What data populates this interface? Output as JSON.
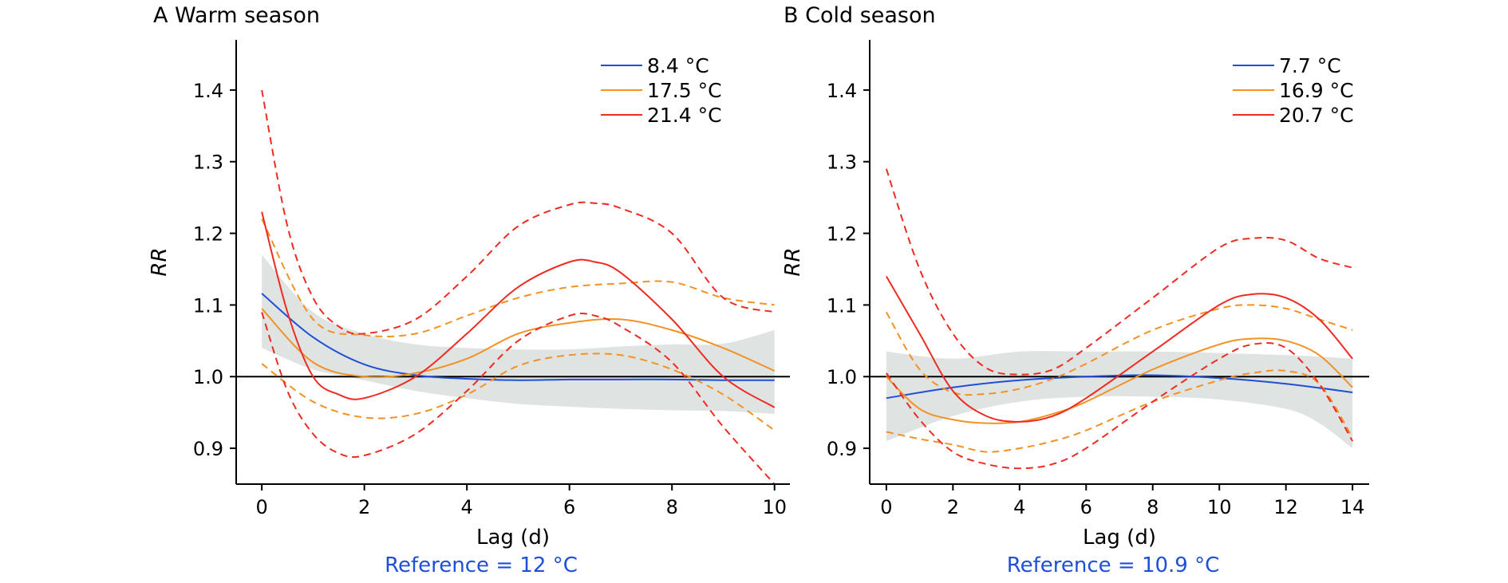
{
  "chart_data": [
    {
      "type": "line",
      "title": "A Warm season",
      "xlabel": "Lag (d)",
      "ylabel": "RR",
      "xlim": [
        0,
        10
      ],
      "ylim": [
        0.85,
        1.47
      ],
      "xticks": [
        0,
        2,
        4,
        6,
        8,
        10
      ],
      "xtick_labels": [
        "0",
        "2",
        "4",
        "6",
        "8",
        "10"
      ],
      "yticks": [
        0.9,
        1.0,
        1.1,
        1.2,
        1.3,
        1.4
      ],
      "ytick_labels": [
        "0.9",
        "1.0",
        "1.1",
        "1.2",
        "1.3",
        "1.4"
      ],
      "reference_line": 1.0,
      "reference_text": "Reference = 12 °C",
      "legend_position": "top-right",
      "band": {
        "x": [
          0,
          1,
          2,
          3,
          4,
          5,
          6,
          7,
          8,
          9,
          10
        ],
        "lower": [
          1.04,
          1.01,
          0.995,
          0.98,
          0.97,
          0.962,
          0.958,
          0.955,
          0.953,
          0.952,
          0.948
        ],
        "upper": [
          1.17,
          1.09,
          1.06,
          1.045,
          1.04,
          1.038,
          1.038,
          1.042,
          1.045,
          1.046,
          1.065
        ]
      },
      "series": [
        {
          "name": "8.4 °C",
          "color": "#1f4fd8",
          "x": [
            0,
            1,
            2,
            3,
            4,
            5,
            6,
            7,
            8,
            9,
            10
          ],
          "y": [
            1.116,
            1.055,
            1.017,
            1.002,
            0.997,
            0.995,
            0.996,
            0.996,
            0.996,
            0.995,
            0.995
          ],
          "lower": null,
          "upper": null
        },
        {
          "name": "17.5 °C",
          "color": "#f39222",
          "x": [
            0,
            1,
            2,
            3,
            4,
            5,
            6,
            7,
            8,
            9,
            10
          ],
          "y": [
            1.095,
            1.02,
            1.0,
            1.005,
            1.025,
            1.06,
            1.075,
            1.08,
            1.065,
            1.04,
            1.008
          ],
          "lower": [
            1.018,
            0.965,
            0.943,
            0.948,
            0.975,
            1.015,
            1.03,
            1.03,
            1.01,
            0.975,
            0.925
          ],
          "upper": [
            1.22,
            1.08,
            1.058,
            1.06,
            1.085,
            1.11,
            1.125,
            1.13,
            1.132,
            1.11,
            1.1
          ]
        },
        {
          "name": "21.4 °C",
          "color": "#ee2b22",
          "x": [
            0,
            0.5,
            1,
            1.5,
            2,
            3,
            4,
            5,
            6,
            6.5,
            7,
            8,
            9,
            10
          ],
          "y": [
            1.23,
            1.09,
            1.0,
            0.975,
            0.97,
            1.0,
            1.06,
            1.125,
            1.16,
            1.16,
            1.145,
            1.08,
            1.0,
            0.957
          ],
          "lower": [
            1.09,
            0.98,
            0.92,
            0.893,
            0.89,
            0.92,
            0.98,
            1.05,
            1.085,
            1.085,
            1.07,
            1.02,
            0.93,
            0.85
          ],
          "upper": [
            1.4,
            1.21,
            1.11,
            1.07,
            1.06,
            1.08,
            1.14,
            1.21,
            1.24,
            1.242,
            1.235,
            1.2,
            1.11,
            1.09
          ]
        }
      ]
    },
    {
      "type": "line",
      "title": "B Cold season",
      "xlabel": "Lag (d)",
      "ylabel": "RR",
      "xlim": [
        0,
        14
      ],
      "ylim": [
        0.85,
        1.47
      ],
      "xticks": [
        0,
        2,
        4,
        6,
        8,
        10,
        12,
        14
      ],
      "xtick_labels": [
        "0",
        "2",
        "4",
        "6",
        "8",
        "10",
        "12",
        "14"
      ],
      "yticks": [
        0.9,
        1.0,
        1.1,
        1.2,
        1.3,
        1.4
      ],
      "ytick_labels": [
        "0.9",
        "1.0",
        "1.1",
        "1.2",
        "1.3",
        "1.4"
      ],
      "reference_line": 1.0,
      "reference_text": "Reference = 10.9 °C",
      "legend_position": "top-right",
      "band": {
        "x": [
          0,
          2,
          4,
          6,
          8,
          10,
          12,
          13,
          14
        ],
        "lower": [
          0.91,
          0.945,
          0.965,
          0.972,
          0.972,
          0.968,
          0.955,
          0.935,
          0.9
        ],
        "upper": [
          1.035,
          1.025,
          1.035,
          1.035,
          1.035,
          1.033,
          1.03,
          1.028,
          1.025
        ]
      },
      "series": [
        {
          "name": "7.7 °C",
          "color": "#1f4fd8",
          "x": [
            0,
            2,
            4,
            6,
            8,
            10,
            12,
            14
          ],
          "y": [
            0.97,
            0.985,
            0.995,
            1.0,
            1.002,
            0.998,
            0.99,
            0.978
          ],
          "lower": null,
          "upper": null
        },
        {
          "name": "16.9 °C",
          "color": "#f39222",
          "x": [
            0,
            1,
            2,
            3,
            4,
            5,
            6,
            8,
            10,
            11,
            12,
            13,
            14
          ],
          "y": [
            1.0,
            0.955,
            0.94,
            0.935,
            0.937,
            0.948,
            0.965,
            1.01,
            1.045,
            1.053,
            1.05,
            1.03,
            0.985
          ],
          "lower": [
            0.923,
            0.913,
            0.905,
            0.895,
            0.9,
            0.91,
            0.925,
            0.965,
            0.995,
            1.005,
            1.008,
            0.99,
            0.915
          ],
          "upper": [
            1.09,
            1.01,
            0.978,
            0.976,
            0.983,
            0.997,
            1.018,
            1.065,
            1.095,
            1.1,
            1.095,
            1.08,
            1.065
          ]
        },
        {
          "name": "20.7 °C",
          "color": "#ee2b22",
          "x": [
            0,
            1,
            2,
            3,
            4,
            5,
            6,
            8,
            10,
            11,
            12,
            13,
            14
          ],
          "y": [
            1.14,
            1.06,
            0.98,
            0.945,
            0.937,
            0.945,
            0.97,
            1.035,
            1.1,
            1.115,
            1.11,
            1.08,
            1.025
          ],
          "lower": [
            1.005,
            0.94,
            0.895,
            0.878,
            0.872,
            0.878,
            0.9,
            0.965,
            1.025,
            1.045,
            1.04,
            0.99,
            0.91
          ],
          "upper": [
            1.29,
            1.15,
            1.06,
            1.012,
            1.003,
            1.01,
            1.04,
            1.11,
            1.18,
            1.193,
            1.19,
            1.165,
            1.152
          ]
        }
      ]
    }
  ]
}
